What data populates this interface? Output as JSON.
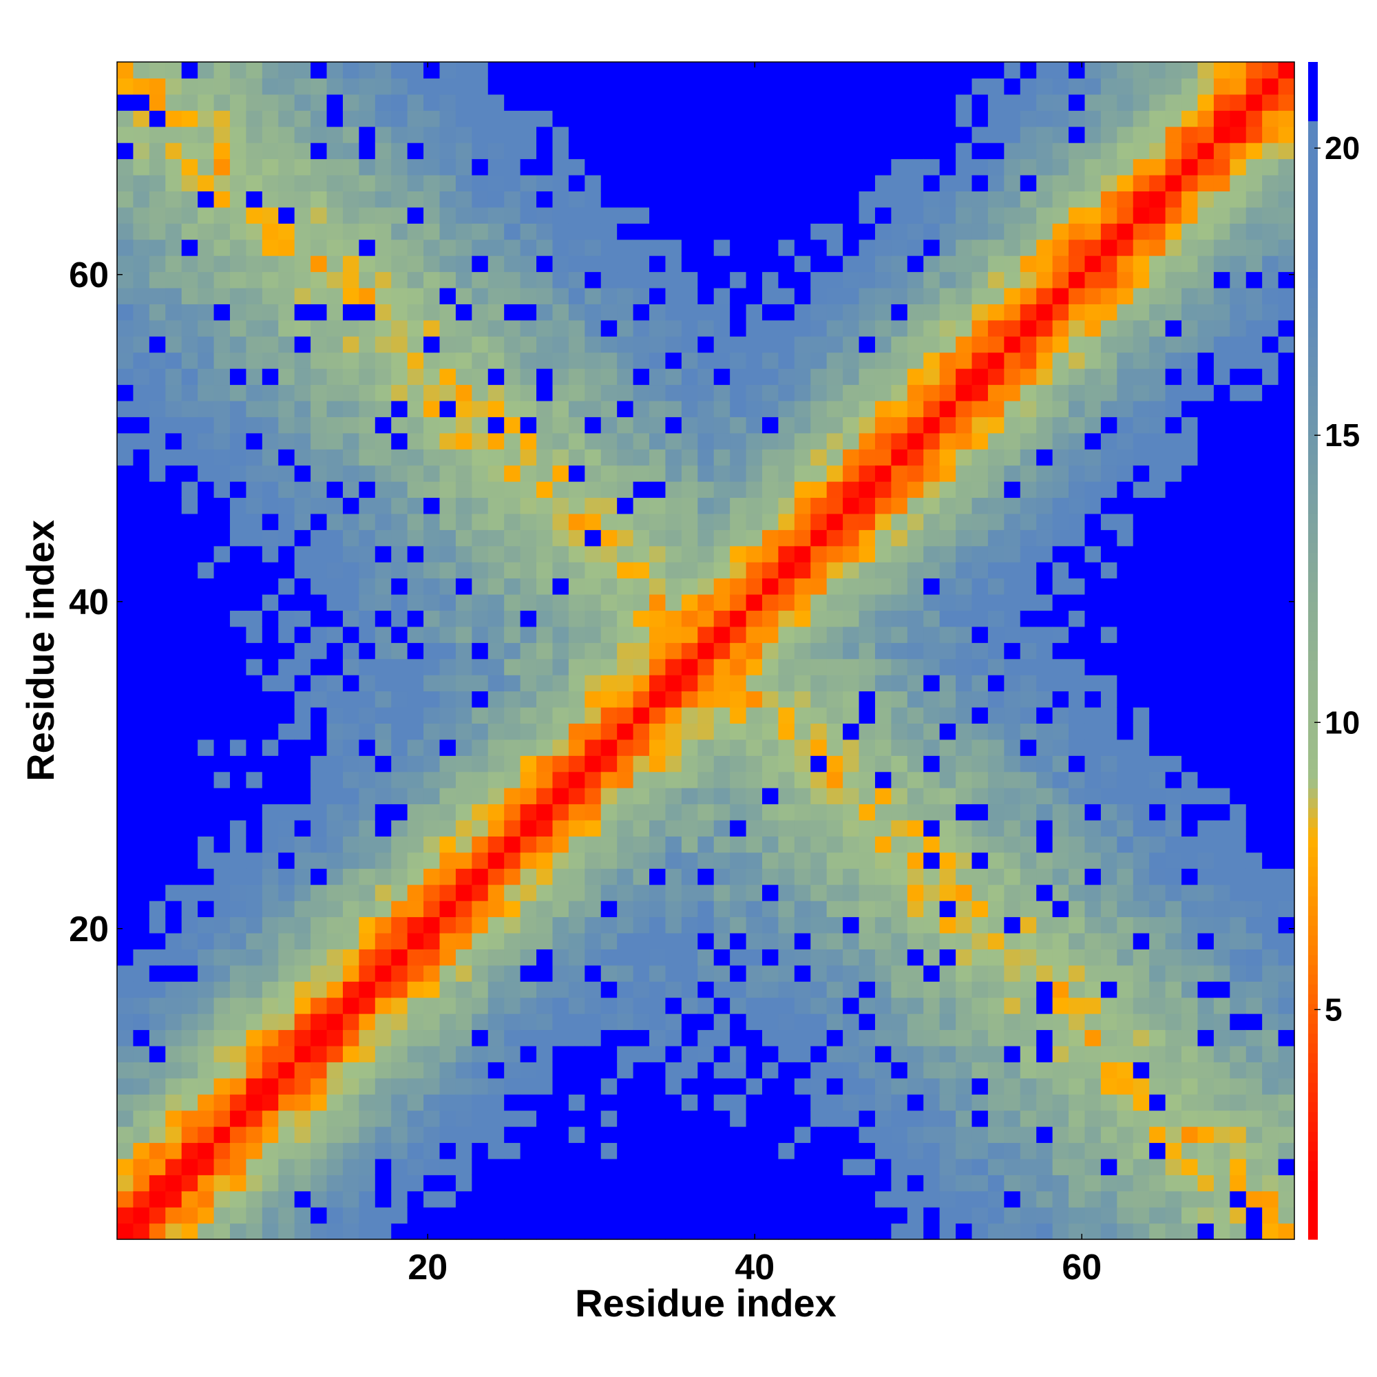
{
  "chart_data": {
    "type": "heatmap",
    "title": "",
    "xlabel": "Residue index",
    "ylabel": "Residue index",
    "n_residues": 73,
    "xlim": [
      1,
      73
    ],
    "ylim": [
      1,
      73
    ],
    "x_ticks": [
      20,
      40,
      60
    ],
    "y_ticks": [
      20,
      40,
      60
    ],
    "value_description": "pairwise residue distance",
    "colorbar": {
      "range": [
        1,
        21.5
      ],
      "ticks": [
        5,
        10,
        15,
        20
      ],
      "cutoff_color": "#0000ff",
      "scale": [
        {
          "value": 2,
          "color": "#ff0000"
        },
        {
          "value": 4,
          "color": "#ff4000"
        },
        {
          "value": 6,
          "color": "#ff8000"
        },
        {
          "value": 8,
          "color": "#ffb000"
        },
        {
          "value": 9,
          "color": "#a0c088"
        },
        {
          "value": 12,
          "color": "#8cae95"
        },
        {
          "value": 15,
          "color": "#6f98ac"
        },
        {
          "value": 18,
          "color": "#5a86c0"
        },
        {
          "value": 20.5,
          "color": "#5a86c0"
        }
      ]
    },
    "grid": false
  }
}
